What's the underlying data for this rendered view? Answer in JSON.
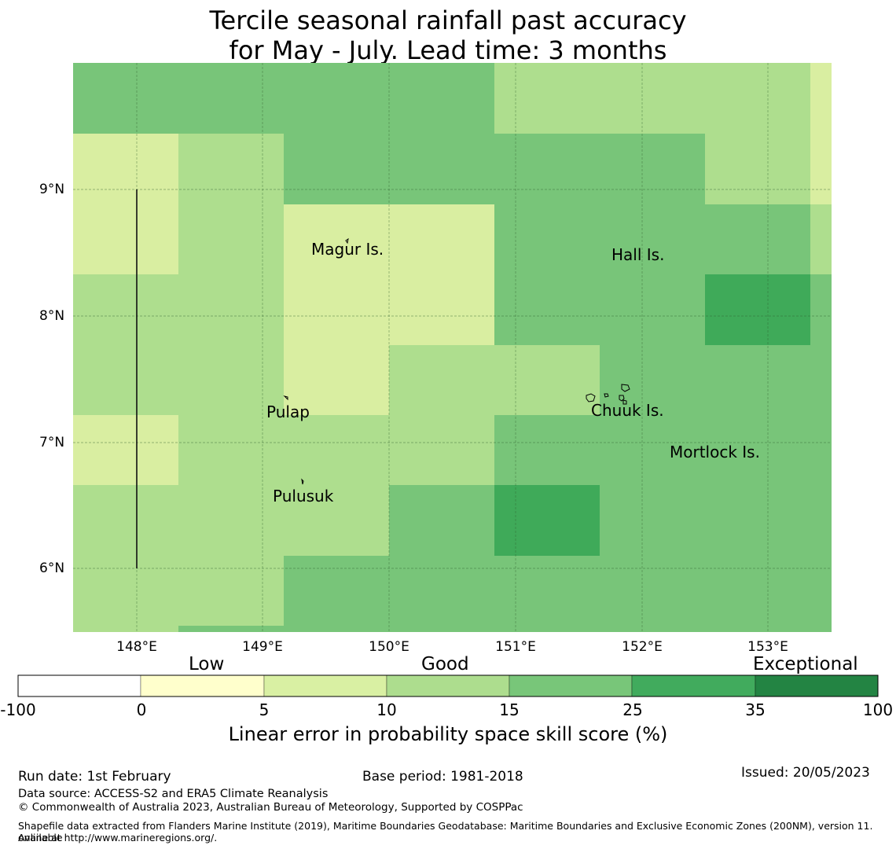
{
  "title": {
    "line1": "Tercile seasonal rainfall past accuracy",
    "line2": "for May - July. Lead time: 3 months"
  },
  "map": {
    "lat_labels": [
      "9°N",
      "8°N",
      "7°N",
      "6°N"
    ],
    "lon_labels": [
      "148°E",
      "149°E",
      "150°E",
      "151°E",
      "152°E",
      "153°E"
    ],
    "places": [
      "Magur Is.",
      "Hall Is.",
      "Pulap",
      "Chuuk Is.",
      "Mortlock Is.",
      "Pulusuk"
    ],
    "colors": {
      "c0_5": "#d9eea1",
      "c5_10": "#aede8e",
      "c10_15": "#78c579",
      "c15_25": "#3faa59",
      "c25_35": "#258843"
    }
  },
  "legend": {
    "categories": {
      "low": "Low",
      "good": "Good",
      "exceptional": "Exceptional"
    },
    "ticks": [
      "-100",
      "0",
      "5",
      "10",
      "15",
      "25",
      "35",
      "100"
    ],
    "bin_colors": [
      "#ffffff",
      "#ffffcc",
      "#d9f0a3",
      "#addd8e",
      "#78c679",
      "#41ab5d",
      "#238443"
    ],
    "title": "Linear error in probability space skill score (%)"
  },
  "footer": {
    "run_date": "Run date: 1st February",
    "base_period": "Base period: 1981-2018",
    "issued": "Issued: 20/05/2023",
    "data_source": "Data source: ACCESS-S2 and ERA5 Climate Reanalysis",
    "copyright": "© Commonwealth of Australia 2023, Australian Bureau of Meteorology, Supported by COSPPac",
    "shapefile_line1": "Shapefile data extracted from Flanders Marine Institute (2019), Maritime Boundaries Geodatabase: Maritime Boundaries and Exclusive Economic Zones (200NM), version 11. Available",
    "shapefile_line2": "online at http://www.marineregions.org/."
  }
}
